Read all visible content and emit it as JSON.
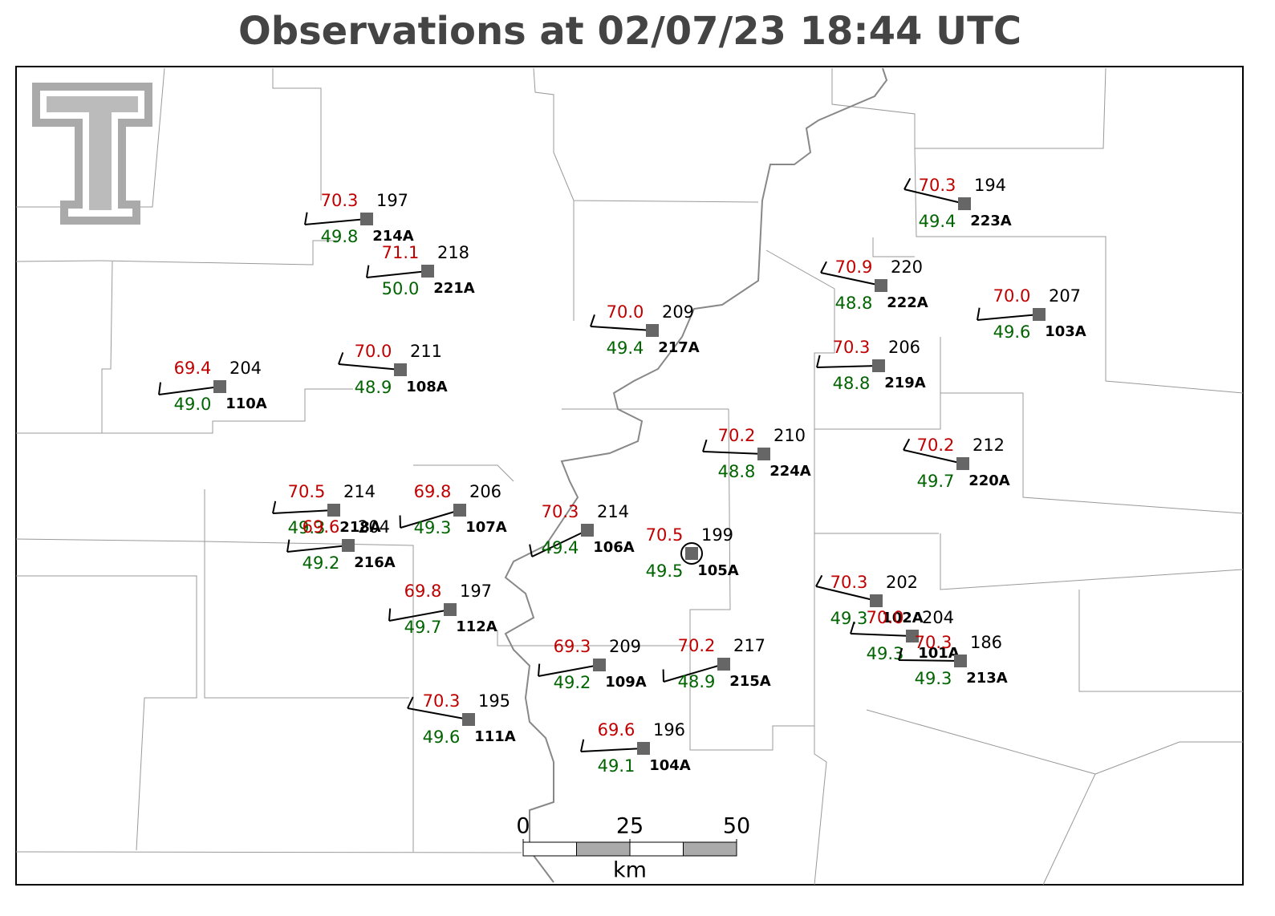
{
  "title": "Observations at 02/07/23 18:44 UTC",
  "stations": [
    {
      "id": "214A",
      "temperature": "70.3",
      "dewpoint": "49.8",
      "pressure": 197
    },
    {
      "id": "221A",
      "temperature": "71.1",
      "dewpoint": "50.0",
      "pressure": 218
    },
    {
      "id": "217A",
      "temperature": "70.0",
      "dewpoint": "49.4",
      "pressure": 209
    },
    {
      "id": "223A",
      "temperature": "70.3",
      "dewpoint": "49.4",
      "pressure": 194
    },
    {
      "id": "222A",
      "temperature": "70.9",
      "dewpoint": "48.8",
      "pressure": 220
    },
    {
      "id": "103A",
      "temperature": "70.0",
      "dewpoint": "49.6",
      "pressure": 207
    },
    {
      "id": "110A",
      "temperature": "69.4",
      "dewpoint": "49.0",
      "pressure": 204
    },
    {
      "id": "108A",
      "temperature": "70.0",
      "dewpoint": "48.9",
      "pressure": 211
    },
    {
      "id": "219A",
      "temperature": "70.3",
      "dewpoint": "48.8",
      "pressure": 206
    },
    {
      "id": "224A",
      "temperature": "70.2",
      "dewpoint": "48.8",
      "pressure": 210
    },
    {
      "id": "220A",
      "temperature": "70.2",
      "dewpoint": "49.7",
      "pressure": 212
    },
    {
      "id": "218A",
      "temperature": "70.5",
      "dewpoint": "49.3",
      "pressure": 214
    },
    {
      "id": "216A",
      "temperature": "69.6",
      "dewpoint": "49.2",
      "pressure": 204
    },
    {
      "id": "107A",
      "temperature": "69.8",
      "dewpoint": "49.3",
      "pressure": 206
    },
    {
      "id": "106A",
      "temperature": "70.3",
      "dewpoint": "49.4",
      "pressure": 214
    },
    {
      "id": "105A",
      "temperature": "70.5",
      "dewpoint": "49.5",
      "pressure": 199
    },
    {
      "id": "112A",
      "temperature": "69.8",
      "dewpoint": "49.7",
      "pressure": 197
    },
    {
      "id": "102A",
      "temperature": "70.3",
      "dewpoint": "49.3",
      "pressure": 202
    },
    {
      "id": "101A",
      "temperature": "70.0",
      "dewpoint": "49.3",
      "pressure": 204
    },
    {
      "id": "213A",
      "temperature": "70.3",
      "dewpoint": "49.3",
      "pressure": 186
    },
    {
      "id": "109A",
      "temperature": "69.3",
      "dewpoint": "49.2",
      "pressure": 209
    },
    {
      "id": "215A",
      "temperature": "70.2",
      "dewpoint": "48.9",
      "pressure": 217
    },
    {
      "id": "111A",
      "temperature": "70.3",
      "dewpoint": "49.6",
      "pressure": 195
    },
    {
      "id": "104A",
      "temperature": "69.6",
      "dewpoint": "49.1",
      "pressure": 196
    }
  ],
  "scale": {
    "ticks": [
      0,
      25,
      50
    ],
    "unit": "km"
  }
}
